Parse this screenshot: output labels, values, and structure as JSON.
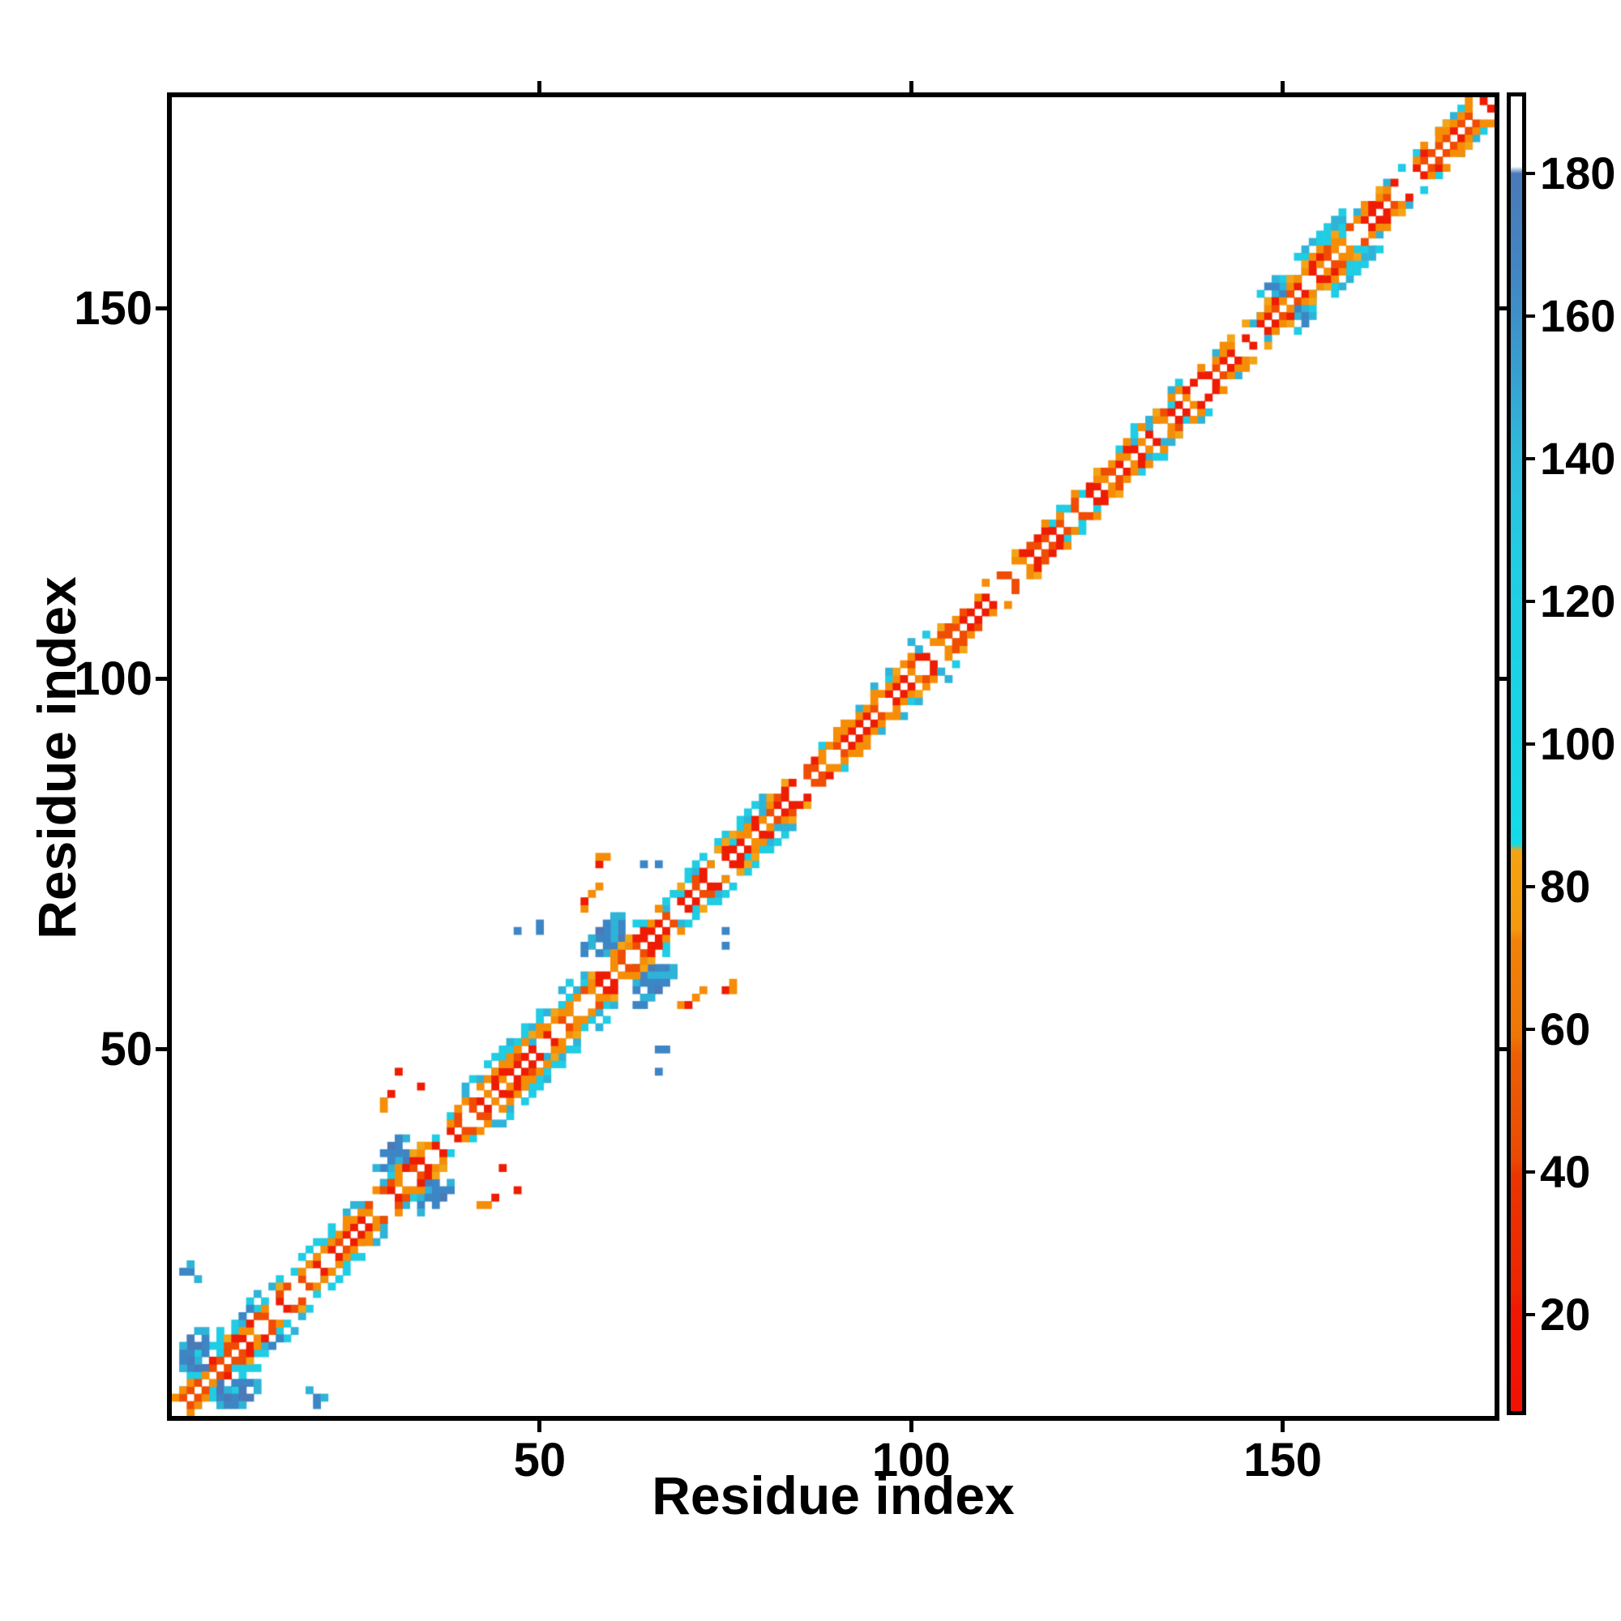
{
  "figure": {
    "background": "#ffffff",
    "axis_color": "#000000",
    "xlabel": "Residue index",
    "ylabel": "Residue index"
  },
  "chart_data": {
    "type": "heatmap",
    "title": "",
    "xlabel": "Residue index",
    "ylabel": "Residue index",
    "n_residues": 178,
    "x_range": [
      1,
      178
    ],
    "y_range": [
      1,
      178
    ],
    "x_tick_values": [
      50,
      100,
      150
    ],
    "x_tick_labels": [
      "50",
      "100",
      "150"
    ],
    "y_tick_values": [
      50,
      100,
      150
    ],
    "y_tick_labels": [
      "50",
      "100",
      "150"
    ],
    "grid": false,
    "symmetric": true,
    "main_diagonal": "white",
    "palette": {
      "red": "#ee1c02",
      "red_orange": "#f04c03",
      "orange": "#f68d07",
      "amber": "#f3a417",
      "cyan": "#1fcde4",
      "teal": "#2fb3d8",
      "steel": "#3d86c5",
      "deep_steel": "#4a7ab8"
    },
    "near_diagonal_band": {
      "d1_gap_prob": 0.22,
      "d2_gap_prob": 0.32,
      "d3_prob": 0.26
    },
    "cyan_flank_segments": [
      {
        "from": 2,
        "to": 12,
        "dmin": 2,
        "dmax": 5,
        "density": 0.5
      },
      {
        "from": 13,
        "to": 27,
        "dmin": 2,
        "dmax": 4,
        "density": 0.5
      },
      {
        "from": 29,
        "to": 38,
        "dmin": 2,
        "dmax": 3,
        "density": 0.35
      },
      {
        "from": 40,
        "to": 56,
        "dmin": 3,
        "dmax": 5,
        "density": 0.7
      },
      {
        "from": 41,
        "to": 54,
        "dmin": 2,
        "dmax": 2,
        "density": 0.25
      },
      {
        "from": 57,
        "to": 68,
        "dmin": 2,
        "dmax": 4,
        "density": 0.3
      },
      {
        "from": 69,
        "to": 80,
        "dmin": 2,
        "dmax": 4,
        "density": 0.6
      },
      {
        "from": 88,
        "to": 94,
        "dmin": 3,
        "dmax": 4,
        "density": 0.2
      },
      {
        "from": 95,
        "to": 106,
        "dmin": 3,
        "dmax": 4,
        "density": 0.28
      },
      {
        "from": 118,
        "to": 125,
        "dmin": 2,
        "dmax": 3,
        "density": 0.3
      },
      {
        "from": 128,
        "to": 136,
        "dmin": 2,
        "dmax": 4,
        "density": 0.55
      },
      {
        "from": 141,
        "to": 147,
        "dmin": 2,
        "dmax": 3,
        "density": 0.45
      },
      {
        "from": 147,
        "to": 158,
        "dmin": 2,
        "dmax": 5,
        "density": 0.6
      },
      {
        "from": 159,
        "to": 168,
        "dmin": 2,
        "dmax": 3,
        "density": 0.3
      },
      {
        "from": 170,
        "to": 177,
        "dmin": 2,
        "dmax": 3,
        "density": 0.4
      }
    ],
    "helix_cap_clusters": [
      {
        "center": 6,
        "radius": 6
      },
      {
        "center": 33,
        "radius": 5
      },
      {
        "center": 62,
        "radius": 6
      },
      {
        "center": 151,
        "radius": 3
      }
    ],
    "outlier_contacts": [
      [
        2,
        20,
        "steel"
      ],
      [
        3,
        20,
        "steel"
      ],
      [
        3,
        21,
        "teal"
      ],
      [
        4,
        19,
        "teal"
      ],
      [
        10,
        14,
        "steel"
      ],
      [
        11,
        15,
        "steel"
      ],
      [
        29,
        42,
        "orange"
      ],
      [
        29,
        43,
        "orange"
      ],
      [
        30,
        44,
        "red"
      ],
      [
        31,
        47,
        "red"
      ],
      [
        34,
        45,
        "red"
      ],
      [
        47,
        66,
        "steel"
      ],
      [
        50,
        66,
        "steel"
      ],
      [
        50,
        67,
        "steel"
      ],
      [
        56,
        69,
        "orange"
      ],
      [
        56,
        70,
        "red"
      ],
      [
        57,
        71,
        "orange"
      ],
      [
        58,
        72,
        "orange"
      ],
      [
        58,
        75,
        "red"
      ],
      [
        58,
        76,
        "orange"
      ],
      [
        59,
        76,
        "orange"
      ],
      [
        64,
        75,
        "steel"
      ],
      [
        66,
        75,
        "steel"
      ],
      [
        100,
        105,
        "teal"
      ],
      [
        101,
        104,
        "teal"
      ]
    ],
    "colorbar": {
      "tick_values": [
        20,
        40,
        60,
        80,
        100,
        120,
        140,
        160,
        180
      ],
      "tick_labels": [
        "20",
        "40",
        "60",
        "80",
        "100",
        "120",
        "140",
        "160",
        "180"
      ],
      "value_top": 190.8,
      "value_bottom": 6.5,
      "gradient_stops": [
        {
          "value": 190.8,
          "color": "#ffffff"
        },
        {
          "value": 181.0,
          "color": "#ffffff"
        },
        {
          "value": 180.0,
          "color": "#4a79b8"
        },
        {
          "value": 166.0,
          "color": "#4286c3"
        },
        {
          "value": 152.0,
          "color": "#389fd1"
        },
        {
          "value": 140.0,
          "color": "#2fbcdc"
        },
        {
          "value": 126.0,
          "color": "#22cde3"
        },
        {
          "value": 100.0,
          "color": "#18d5e6"
        },
        {
          "value": 86.0,
          "color": "#14dbe8"
        },
        {
          "value": 85.0,
          "color": "#f4a312"
        },
        {
          "value": 74.0,
          "color": "#f3990e"
        },
        {
          "value": 72.5,
          "color": "#f0820a"
        },
        {
          "value": 59.0,
          "color": "#ee7607"
        },
        {
          "value": 56.5,
          "color": "#ec6005"
        },
        {
          "value": 42.0,
          "color": "#ea4a04"
        },
        {
          "value": 39.5,
          "color": "#ea3503"
        },
        {
          "value": 23.0,
          "color": "#ed2503"
        },
        {
          "value": 21.0,
          "color": "#f11803"
        },
        {
          "value": 6.5,
          "color": "#f21104"
        }
      ]
    }
  }
}
